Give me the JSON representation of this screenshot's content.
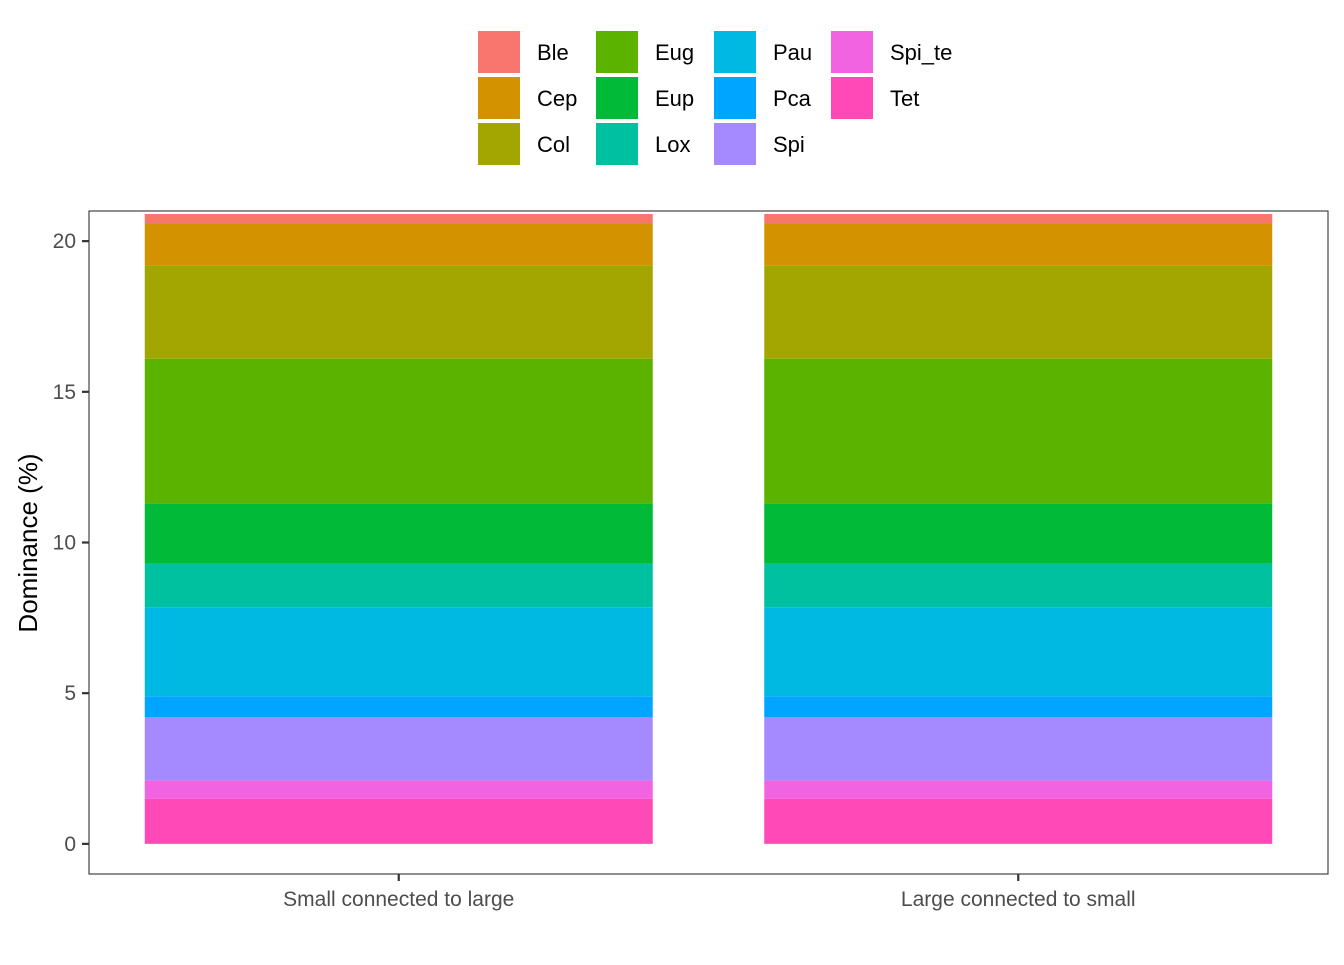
{
  "chart_data": {
    "type": "bar",
    "stacked": true,
    "categories": [
      "Small connected to large",
      "Large connected to small"
    ],
    "ylabel": "Dominance (%)",
    "xlabel": "",
    "ylim": [
      -1,
      21
    ],
    "yticks": [
      0,
      5,
      10,
      15,
      20
    ],
    "grid": false,
    "legend_position": "top",
    "series": [
      {
        "name": "Ble",
        "color": "#F8766D",
        "values": [
          0.3,
          0.3
        ]
      },
      {
        "name": "Cep",
        "color": "#D39200",
        "values": [
          1.4,
          1.4
        ]
      },
      {
        "name": "Col",
        "color": "#A3A500",
        "values": [
          3.1,
          3.1
        ]
      },
      {
        "name": "Eug",
        "color": "#5BB300",
        "values": [
          4.8,
          4.8
        ]
      },
      {
        "name": "Eup",
        "color": "#00BA38",
        "values": [
          2.0,
          2.0
        ]
      },
      {
        "name": "Lox",
        "color": "#00C19F",
        "values": [
          1.45,
          1.45
        ]
      },
      {
        "name": "Pau",
        "color": "#00B9E3",
        "values": [
          2.95,
          2.95
        ]
      },
      {
        "name": "Pca",
        "color": "#00A5FF",
        "values": [
          0.7,
          0.7
        ]
      },
      {
        "name": "Spi",
        "color": "#A58AFF",
        "values": [
          2.1,
          2.1
        ]
      },
      {
        "name": "Spi_te",
        "color": "#F263E2",
        "values": [
          0.6,
          0.6
        ]
      },
      {
        "name": "Tet",
        "color": "#FF49B6",
        "values": [
          1.5,
          1.5
        ]
      }
    ]
  }
}
